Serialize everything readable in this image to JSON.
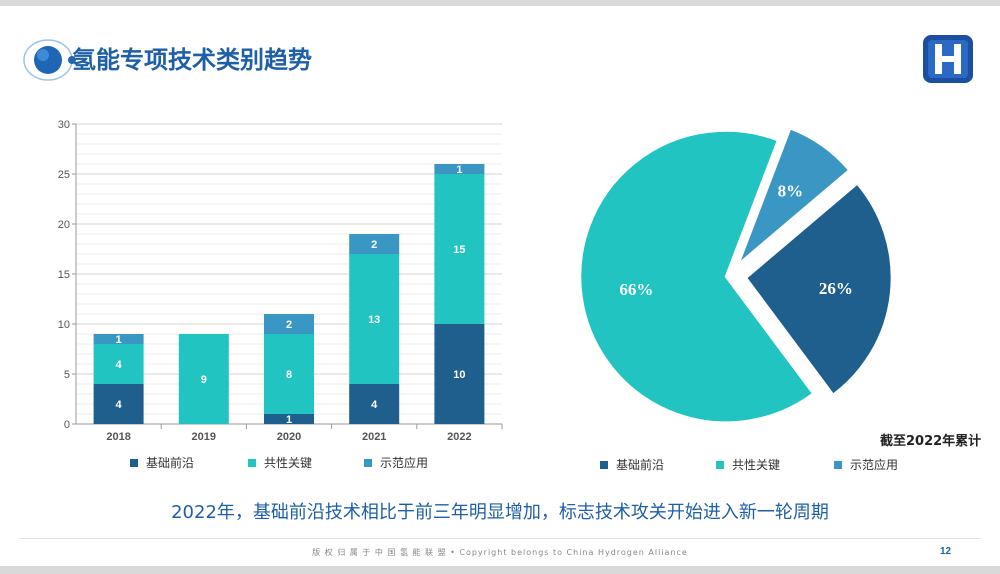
{
  "slide": {
    "title": "氢能专项技术类别趋势",
    "conclusion": "2022年，基础前沿技术相比于前三年明显增加，标志技术攻关开始进入新一轮周期",
    "footer": "版 权 归 属 于 中 国 氢 能 联 盟   •   Copyright belongs to China Hydrogen Alliance",
    "page_number": "12",
    "logo_icon": "hydrogen-alliance-logo-icon",
    "title_icon": "orbit-circle-icon"
  },
  "colors": {
    "basic": "#1f5f8e",
    "common": "#21c4c0",
    "demo": "#3a97c3",
    "title": "#1e5fa8"
  },
  "chart_data": [
    {
      "type": "bar",
      "stacked": true,
      "categories": [
        "2018",
        "2019",
        "2020",
        "2021",
        "2022"
      ],
      "series": [
        {
          "name": "基础前沿",
          "values": [
            4,
            0,
            1,
            4,
            10
          ]
        },
        {
          "name": "共性关键",
          "values": [
            4,
            9,
            8,
            13,
            15
          ]
        },
        {
          "name": "示范应用",
          "values": [
            1,
            0,
            2,
            2,
            1
          ]
        }
      ],
      "ylim": [
        0,
        30
      ],
      "yticks": [
        0,
        5,
        10,
        15,
        20,
        25,
        30
      ],
      "grid": true,
      "legend": "bottom"
    },
    {
      "type": "pie",
      "labels": [
        "基础前沿",
        "共性关键",
        "示范应用"
      ],
      "values": [
        26,
        66,
        8
      ],
      "value_labels": [
        "26%",
        "66%",
        "8%"
      ],
      "note": "截至2022年累计",
      "legend": "bottom"
    }
  ]
}
